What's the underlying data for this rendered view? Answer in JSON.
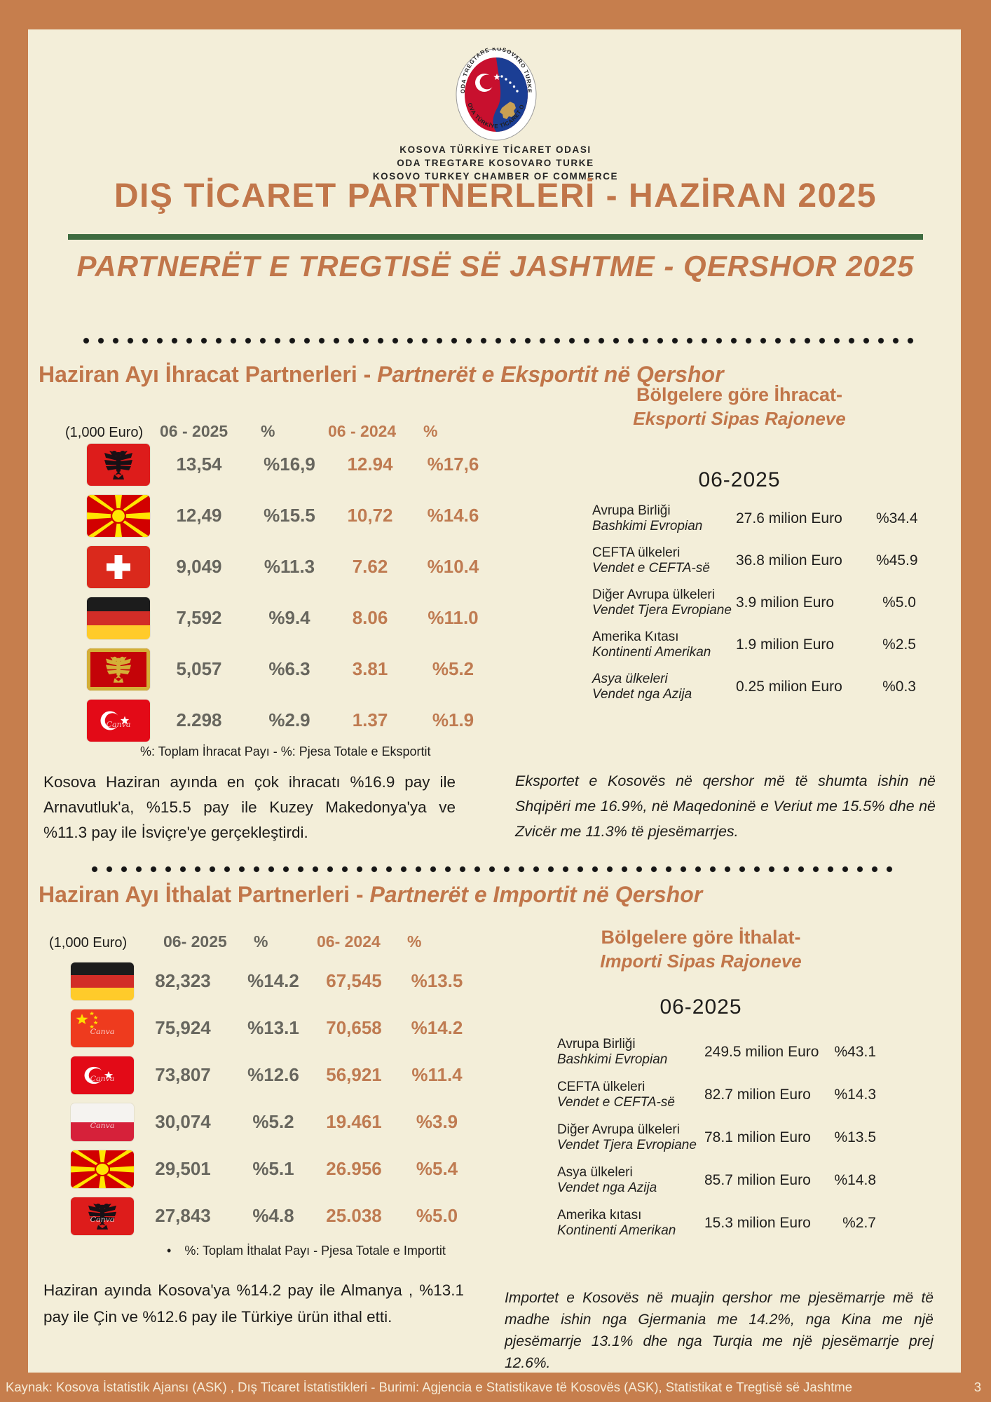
{
  "page": {
    "frame_color": "#c67e4d",
    "bg_color": "#f3eed9",
    "accent_color": "#c1764a",
    "green_divider_color": "#3e6b40",
    "value_2025_color": "#67665e",
    "value_2024_color": "#bf7b51"
  },
  "flag_watermark_label": "Canva",
  "header": {
    "logo": {
      "ring_top": "ODA TREGTARE KOSOVARO TURKE",
      "ring_bottom": "KOSOVA TÜRKİYE TİCARET ODASI"
    },
    "org_lines": [
      "KOSOVA TÜRKİYE TİCARET ODASI",
      "ODA TREGTARE KOSOVARO TURKE",
      "KOSOVO TURKEY CHAMBER OF COMMERCE"
    ],
    "title_tr": "DIŞ TİCARET PARTNERLERİ - HAZİRAN 2025",
    "title_sq": "PARTNERËT E TREGTISË SË JASHTME - QERSHOR 2025"
  },
  "export_section": {
    "heading_tr": "Haziran Ayı İhracat Partnerleri - ",
    "heading_sq": "Partnerët e Eksportit në Qershor",
    "table": {
      "unit_label": "(1,000 Euro)",
      "col_2025": "06 - 2025",
      "col_pct_2025": "%",
      "col_2024": "06 - 2024",
      "col_pct_2024": "%",
      "rows": [
        {
          "country": "Albania",
          "flag": "al",
          "v2025": "13,54",
          "p2025": "%16,9",
          "v2024": "12.94",
          "p2024": "%17,6"
        },
        {
          "country": "North Macedonia",
          "flag": "mk",
          "v2025": "12,49",
          "p2025": "%15.5",
          "v2024": "10,72",
          "p2024": "%14.6"
        },
        {
          "country": "Switzerland",
          "flag": "ch",
          "v2025": "9,049",
          "p2025": "%11.3",
          "v2024": "7.62",
          "p2024": "%10.4"
        },
        {
          "country": "Germany",
          "flag": "de",
          "v2025": "7,592",
          "p2025": "%9.4",
          "v2024": "8.06",
          "p2024": "%11.0"
        },
        {
          "country": "Montenegro",
          "flag": "me",
          "v2025": "5,057",
          "p2025": "%6.3",
          "v2024": "3.81",
          "p2024": "%5.2"
        },
        {
          "country": "Turkey",
          "flag": "tr",
          "wm": true,
          "v2025": "2.298",
          "p2025": "%2.9",
          "v2024": "1.37",
          "p2024": "%1.9"
        }
      ],
      "footnote": "%: Toplam İhracat Payı -  %: Pjesa Totale e Eksportit"
    },
    "regions": {
      "heading_tr": "Bölgelere göre İhracat-",
      "heading_sq": "Eksporti Sipas Rajoneve",
      "period": "06-2025",
      "rows": [
        {
          "name_tr": "Avrupa Birliği",
          "name_sq": "Bashkimi Evropian",
          "amount": "27.6 milion Euro",
          "pct": "%34.4"
        },
        {
          "name_tr": "CEFTA ülkeleri",
          "name_sq": "Vendet e CEFTA-së",
          "amount": "36.8 milion Euro",
          "pct": "%45.9"
        },
        {
          "name_tr": "Diğer Avrupa ülkeleri",
          "name_sq": "Vendet Tjera Evropiane",
          "amount": "3.9 milion Euro",
          "pct": "%5.0"
        },
        {
          "name_tr": "Amerika Kıtası",
          "name_sq": "Kontinenti Amerikan",
          "amount": "1.9 milion Euro",
          "pct": "%2.5"
        },
        {
          "name_tr": "Asya ülkeleri",
          "name_sq": "Vendet nga Azija",
          "amount": "0.25 milion Euro",
          "pct": "%0.3"
        }
      ]
    },
    "paragraph_tr": "Kosova Haziran ayında en çok ihracatı %16.9 pay ile Arnavutluk'a, %15.5 pay ile Kuzey Makedonya'ya ve %11.3 pay ile İsviçre'ye gerçekleştirdi.",
    "paragraph_sq": "Eksportet e Kosovës në qershor më të shumta ishin në Shqipëri me 16.9%, në Maqedoninë e Veriut me 15.5% dhe në Zvicër me 11.3% të pjesëmarrjes."
  },
  "import_section": {
    "heading_tr": "Haziran Ayı İthalat Partnerleri - ",
    "heading_sq": "Partnerët e Importit në Qershor",
    "table": {
      "unit_label": "(1,000 Euro)",
      "col_2025": "06- 2025",
      "col_pct_2025": "%",
      "col_2024": "06- 2024",
      "col_pct_2024": "%",
      "rows": [
        {
          "country": "Germany",
          "flag": "de",
          "v2025": "82,323",
          "p2025": "%14.2",
          "v2024": "67,545",
          "p2024": "%13.5"
        },
        {
          "country": "China",
          "flag": "cn",
          "wm": true,
          "v2025": "75,924",
          "p2025": "%13.1",
          "v2024": "70,658",
          "p2024": "%14.2"
        },
        {
          "country": "Turkey",
          "flag": "tr",
          "wm": true,
          "v2025": "73,807",
          "p2025": "%12.6",
          "v2024": "56,921",
          "p2024": "%11.4"
        },
        {
          "country": "Poland",
          "flag": "pl",
          "wm": true,
          "v2025": "30,074",
          "p2025": "%5.2",
          "v2024": "19.461",
          "p2024": "%3.9"
        },
        {
          "country": "North Macedonia",
          "flag": "mk",
          "v2025": "29,501",
          "p2025": "%5.1",
          "v2024": "26.956",
          "p2024": "%5.4"
        },
        {
          "country": "Albania",
          "flag": "al",
          "wm": true,
          "v2025": "27,843",
          "p2025": "%4.8",
          "v2024": "25.038",
          "p2024": "%5.0"
        }
      ],
      "footnote_bullet": "•",
      "footnote": "%: Toplam İthalat Payı - Pjesa Totale e Importit"
    },
    "regions": {
      "heading_tr": "Bölgelere göre İthalat-",
      "heading_sq": "Importi Sipas Rajoneve",
      "period": "06-2025",
      "rows": [
        {
          "name_tr": "Avrupa Birliği",
          "name_sq": "Bashkimi Evropian",
          "amount": "249.5 milion Euro",
          "pct": "%43.1"
        },
        {
          "name_tr": "CEFTA ülkeleri",
          "name_sq": "Vendet e CEFTA-së",
          "amount": "82.7 milion Euro",
          "pct": "%14.3"
        },
        {
          "name_tr": "Diğer Avrupa ülkeleri",
          "name_sq": "Vendet Tjera Evropiane",
          "amount": "78.1 milion Euro",
          "pct": "%13.5"
        },
        {
          "name_tr": "Asya ülkeleri",
          "name_sq": "Vendet nga Azija",
          "amount": "85.7 milion Euro",
          "pct": "%14.8"
        },
        {
          "name_tr": "Amerika kıtası",
          "name_sq": "Kontinenti Amerikan",
          "amount": "15.3 milion Euro",
          "pct": "%2.7"
        }
      ]
    },
    "paragraph_tr": "Haziran ayında Kosova'ya %14.2 pay ile Almanya , %13.1 pay ile Çin  ve %12.6 pay ile Türkiye ürün ithal etti.",
    "paragraph_sq": "Importet e Kosovës në muajin qershor me pjesëmarrje më të madhe ishin nga Gjermania me 14.2%, nga Kina me një pjesëmarrje 13.1% dhe nga Turqia me një pjesëmarrje prej 12.6%."
  },
  "footer": {
    "source_text": "Kaynak: Kosova İstatistik Ajansı (ASK) ,  Dış Ticaret İstatistikleri -   Burimi: Agjencia e Statistikave të Kosovës (ASK), Statistikat e Tregtisë së Jashtme",
    "page_number": "3"
  }
}
